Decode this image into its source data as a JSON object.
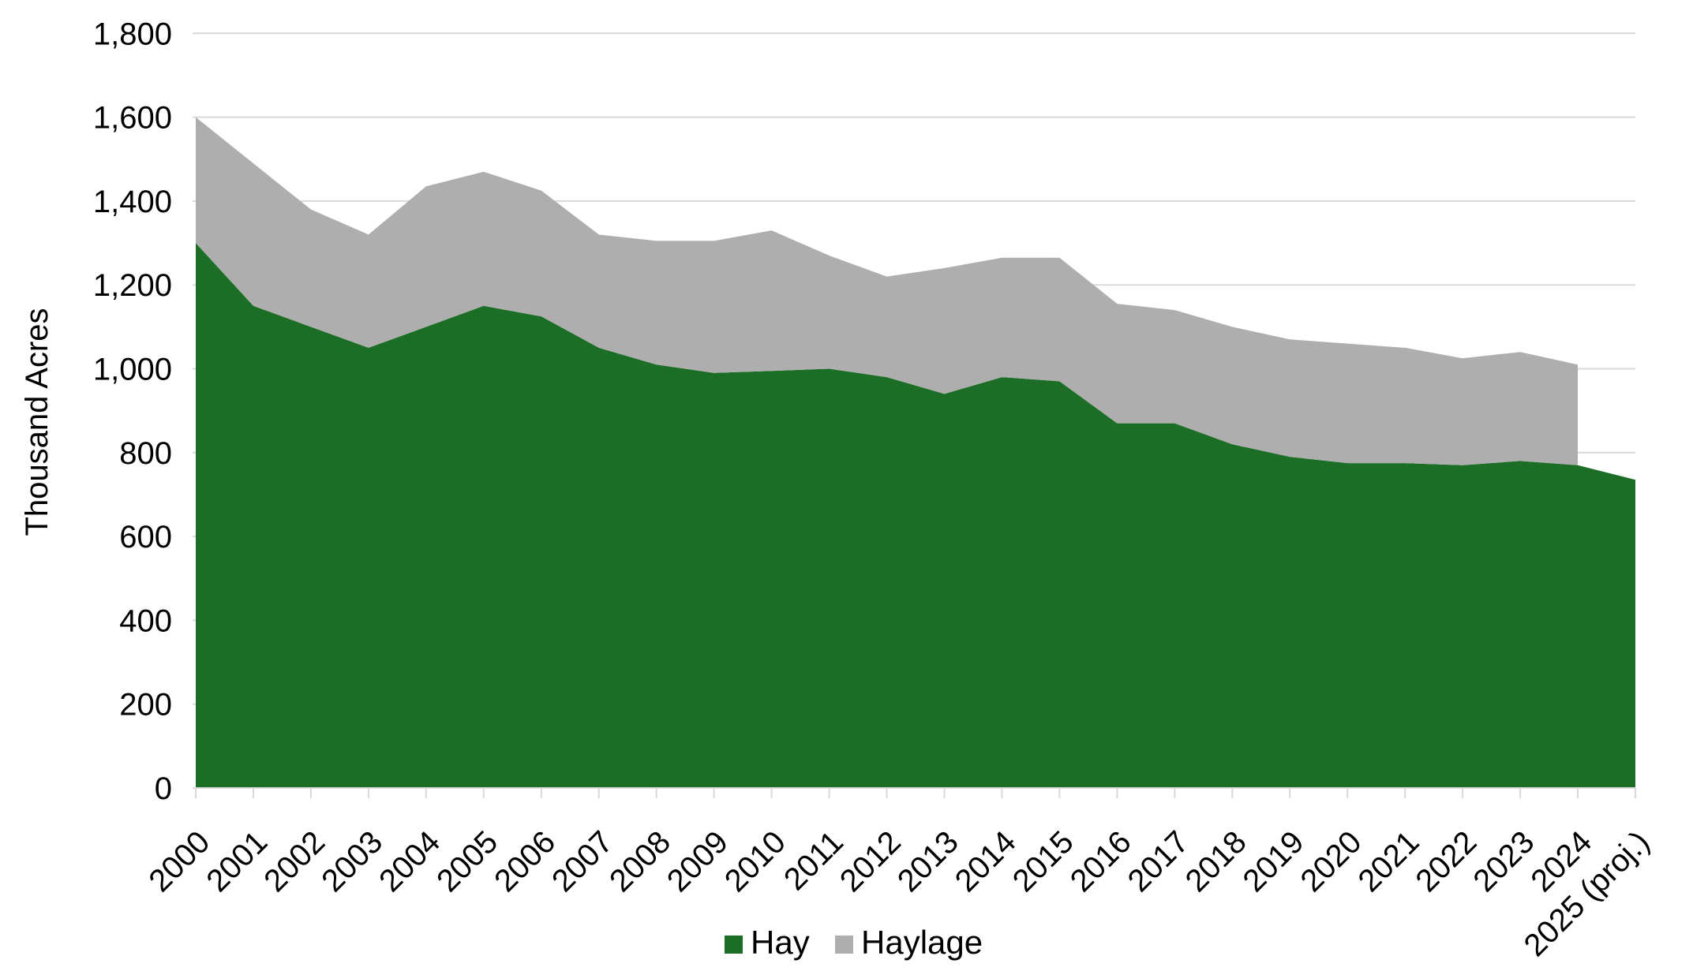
{
  "chart_data": {
    "type": "area",
    "stacked": true,
    "title": "",
    "xlabel": "",
    "ylabel": "Thousand Acres",
    "ylim": [
      0,
      1800
    ],
    "ytick_step": 200,
    "ytick_labels": [
      "0",
      "200",
      "400",
      "600",
      "800",
      "1,000",
      "1,200",
      "1,400",
      "1,600",
      "1,800"
    ],
    "categories": [
      "2000",
      "2001",
      "2002",
      "2003",
      "2004",
      "2005",
      "2006",
      "2007",
      "2008",
      "2009",
      "2010",
      "2011",
      "2012",
      "2013",
      "2014",
      "2015",
      "2016",
      "2017",
      "2018",
      "2019",
      "2020",
      "2021",
      "2022",
      "2023",
      "2024",
      "2025 (proj.)"
    ],
    "series": [
      {
        "name": "Hay",
        "color": "#1C6E26",
        "values": [
          1300,
          1150,
          1100,
          1050,
          1100,
          1150,
          1125,
          1050,
          1010,
          990,
          995,
          1000,
          980,
          940,
          980,
          970,
          870,
          870,
          820,
          790,
          775,
          775,
          770,
          780,
          770,
          735
        ]
      },
      {
        "name": "Haylage",
        "color": "#AEAEAE",
        "values": [
          300,
          340,
          280,
          270,
          335,
          320,
          300,
          270,
          295,
          315,
          335,
          270,
          240,
          300,
          285,
          295,
          285,
          270,
          280,
          280,
          285,
          275,
          255,
          260,
          240,
          null
        ]
      }
    ],
    "grid": true,
    "gridline_color": "#D9D9D9",
    "axis_color": "#D9D9D9",
    "text_color": "#000000",
    "legend_position": "bottom-center",
    "background_color": "#FFFFFF"
  }
}
